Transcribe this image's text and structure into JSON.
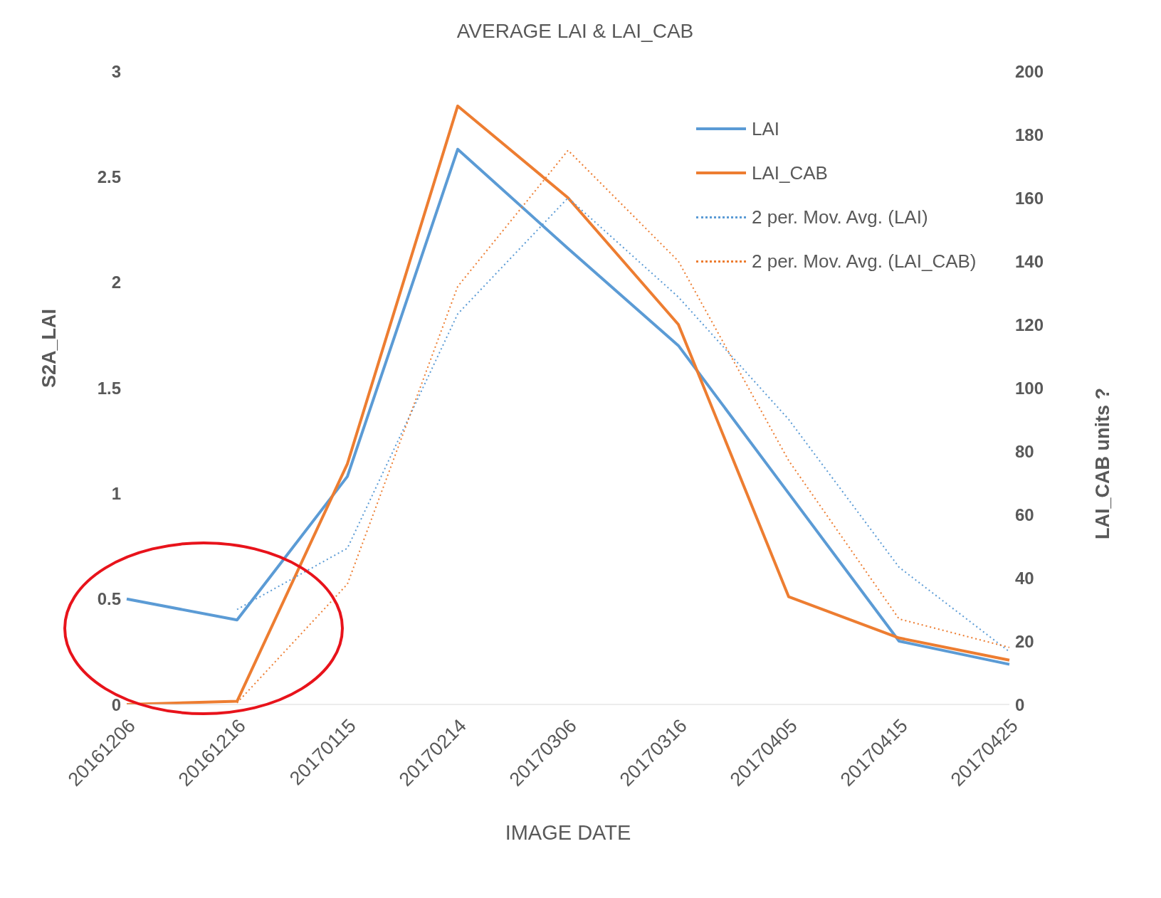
{
  "chart_data": {
    "type": "line",
    "title": "AVERAGE LAI & LAI_CAB",
    "xlabel": "IMAGE DATE",
    "ylabel": "S2A_LAI",
    "y2label": "LAI_CAB   units ?",
    "categories": [
      "20161206",
      "20161216",
      "20170115",
      "20170214",
      "20170306",
      "20170316",
      "20170405",
      "20170415",
      "20170425"
    ],
    "series": [
      {
        "name": "LAI",
        "color": "#5b9bd5",
        "values": [
          0.5,
          0.4,
          1.08,
          2.63,
          2.16,
          1.7,
          1.0,
          0.3,
          0.19
        ]
      },
      {
        "name": "LAI_CAB",
        "color": "#ed7d31",
        "axis": "y2",
        "values": [
          0,
          1,
          76,
          189,
          160,
          120,
          34,
          21,
          14
        ]
      },
      {
        "name": "2 per. Mov. Avg. (LAI)",
        "color": "#5b9bd5",
        "line_style": "dotted",
        "values": [
          null,
          0.45,
          0.74,
          1.85,
          2.4,
          1.93,
          1.35,
          0.65,
          0.25
        ]
      },
      {
        "name": "2 per. Mov. Avg. (LAI_CAB)",
        "color": "#ed7d31",
        "line_style": "dotted",
        "axis": "y2",
        "values": [
          null,
          0.5,
          38,
          132,
          175,
          140,
          77,
          27,
          18
        ]
      }
    ],
    "ylim": [
      0,
      3
    ],
    "yticks": [
      0,
      0.5,
      1,
      1.5,
      2,
      2.5,
      3
    ],
    "y2lim": [
      0,
      200
    ],
    "y2ticks": [
      0,
      20,
      40,
      60,
      80,
      100,
      120,
      140,
      160,
      180,
      200
    ],
    "grid": false,
    "legend": "top right",
    "marker": "none"
  }
}
